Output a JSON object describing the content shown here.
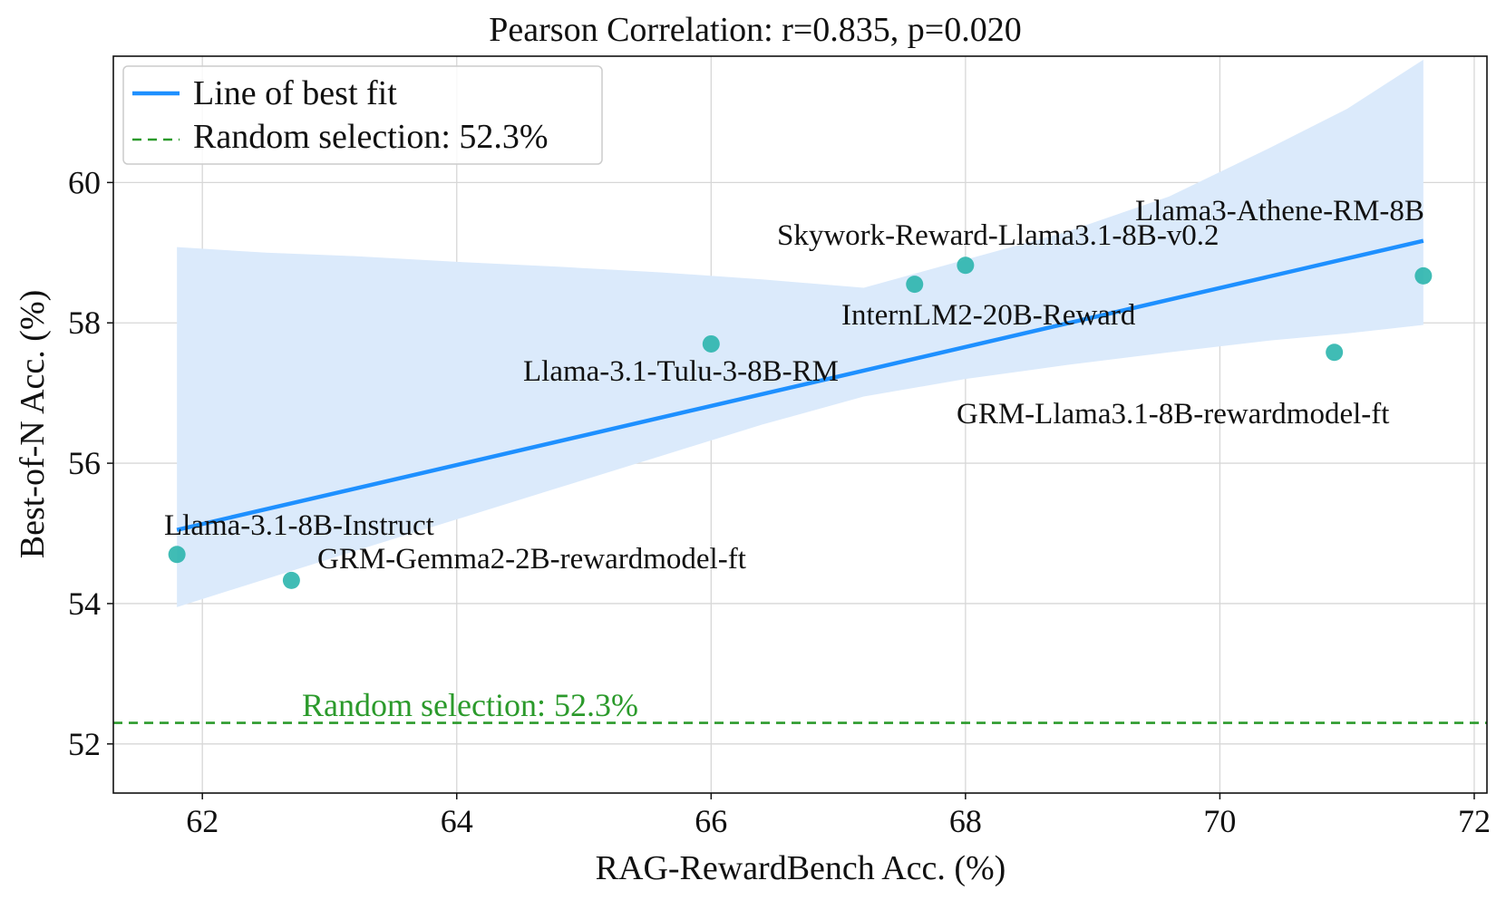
{
  "chart_data": {
    "type": "scatter",
    "title": "Pearson Correlation: r=0.835, p=0.020",
    "xlabel": "RAG-RewardBench Acc. (%)",
    "ylabel": "Best-of-N Acc. (%)",
    "xlim": [
      61.3,
      72.1
    ],
    "ylim": [
      51.3,
      61.8
    ],
    "xticks": [
      62,
      64,
      66,
      68,
      70,
      72
    ],
    "yticks": [
      52,
      54,
      56,
      58,
      60
    ],
    "grid": true,
    "legend_position": "top-left",
    "legend": [
      {
        "name": "Line of best fit",
        "style": "solid",
        "color": "#1e90ff"
      },
      {
        "name": "Random selection: 52.3%",
        "style": "dashed",
        "color": "#2b9a2b"
      }
    ],
    "points": [
      {
        "name": "Llama-3.1-8B-Instruct",
        "x": 61.8,
        "y": 54.7
      },
      {
        "name": "GRM-Gemma2-2B-rewardmodel-ft",
        "x": 62.7,
        "y": 54.33
      },
      {
        "name": "Llama-3.1-Tulu-3-8B-RM",
        "x": 66.0,
        "y": 57.7
      },
      {
        "name": "InternLM2-20B-Reward",
        "x": 67.6,
        "y": 58.55
      },
      {
        "name": "Skywork-Reward-Llama3.1-8B-v0.2",
        "x": 68.0,
        "y": 58.82
      },
      {
        "name": "GRM-Llama3.1-8B-rewardmodel-ft",
        "x": 70.9,
        "y": 57.58
      },
      {
        "name": "Llama3-Athene-RM-8B",
        "x": 71.6,
        "y": 58.67
      }
    ],
    "fit_line": {
      "x": [
        61.8,
        71.6
      ],
      "y": [
        55.05,
        59.17
      ]
    },
    "confidence_band": {
      "x": [
        61.8,
        62.5,
        63.2,
        64.0,
        64.8,
        65.6,
        66.4,
        67.2,
        68.0,
        68.8,
        69.6,
        70.4,
        71.0,
        71.6
      ],
      "upper": [
        59.08,
        59.0,
        58.95,
        58.87,
        58.8,
        58.72,
        58.62,
        58.5,
        58.9,
        59.3,
        59.8,
        60.5,
        61.05,
        61.75
      ],
      "lower": [
        53.95,
        54.35,
        54.75,
        55.2,
        55.65,
        56.1,
        56.55,
        56.95,
        57.2,
        57.4,
        57.58,
        57.75,
        57.85,
        57.97
      ]
    },
    "baseline": {
      "label": "Random selection: 52.3%",
      "y": 52.3
    }
  },
  "colors": {
    "fit": "#1e90ff",
    "band": "#dbeafb",
    "point": "#2bb5ad",
    "baseline": "#2b9a2b"
  }
}
